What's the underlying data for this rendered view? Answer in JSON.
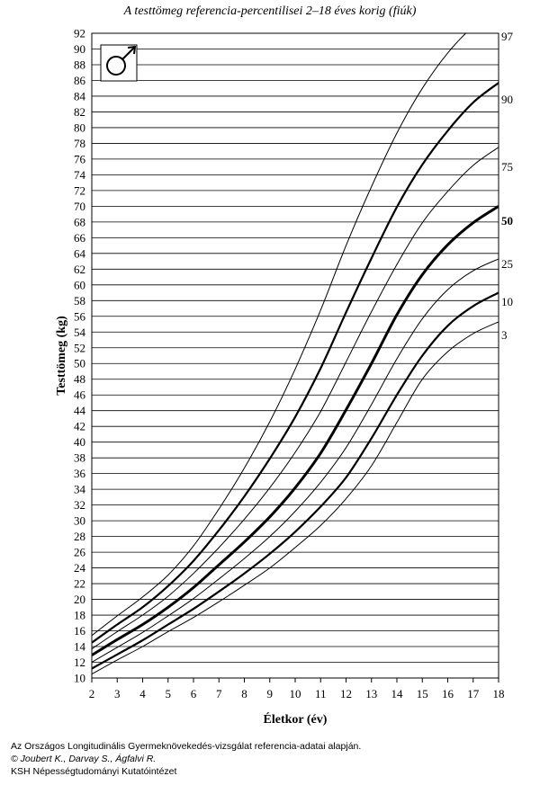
{
  "chart_data": {
    "type": "line",
    "title": "A testtömeg referencia-percentilisei 2–18 éves korig (fiúk)",
    "xlabel": "Életkor (év)",
    "ylabel": "Testtömeg (kg)",
    "xlim": [
      2,
      18
    ],
    "ylim": [
      10,
      92
    ],
    "x_ticks": [
      2,
      3,
      4,
      5,
      6,
      7,
      8,
      9,
      10,
      11,
      12,
      13,
      14,
      15,
      16,
      17,
      18
    ],
    "y_ticks": [
      10,
      12,
      14,
      16,
      18,
      20,
      22,
      24,
      26,
      28,
      30,
      32,
      34,
      36,
      38,
      40,
      42,
      44,
      46,
      48,
      50,
      52,
      54,
      56,
      58,
      60,
      62,
      64,
      66,
      68,
      70,
      72,
      74,
      76,
      78,
      80,
      82,
      84,
      86,
      88,
      90,
      92
    ],
    "grid": "horizontal",
    "symbol": "male-symbol",
    "x": [
      2,
      3,
      4,
      5,
      6,
      7,
      8,
      9,
      10,
      11,
      12,
      13,
      14,
      15,
      16,
      17,
      18
    ],
    "series": [
      {
        "name": "3",
        "emphasis": "thin",
        "values": [
          10.5,
          12.3,
          14.0,
          15.9,
          17.7,
          19.7,
          21.8,
          24.0,
          26.6,
          29.4,
          32.8,
          37.0,
          42.5,
          48.0,
          51.5,
          53.8,
          55.3
        ]
      },
      {
        "name": "10",
        "emphasis": "bold",
        "values": [
          11.2,
          13.0,
          14.8,
          16.8,
          18.8,
          21.0,
          23.3,
          25.8,
          28.6,
          31.8,
          35.5,
          40.5,
          46.0,
          51.0,
          54.8,
          57.3,
          59.0
        ]
      },
      {
        "name": "25",
        "emphasis": "thin",
        "values": [
          12.0,
          13.9,
          15.8,
          17.9,
          20.1,
          22.6,
          25.2,
          28.0,
          31.2,
          34.9,
          39.3,
          44.8,
          50.6,
          55.7,
          59.4,
          61.8,
          63.3
        ]
      },
      {
        "name": "50",
        "emphasis": "heavy",
        "values": [
          12.9,
          14.9,
          16.8,
          19.0,
          21.5,
          24.4,
          27.3,
          30.5,
          34.2,
          38.6,
          44.1,
          50.0,
          56.2,
          61.3,
          65.1,
          67.9,
          70.0
        ]
      },
      {
        "name": "75",
        "emphasis": "thin",
        "values": [
          13.7,
          15.9,
          18.0,
          20.4,
          23.3,
          26.6,
          30.2,
          34.2,
          38.7,
          43.9,
          50.2,
          56.6,
          62.6,
          67.9,
          71.9,
          75.2,
          77.5
        ]
      },
      {
        "name": "90",
        "emphasis": "bold",
        "values": [
          14.5,
          16.8,
          19.0,
          21.7,
          24.9,
          28.8,
          33.1,
          37.9,
          43.2,
          49.4,
          56.5,
          63.4,
          69.9,
          75.3,
          79.6,
          83.2,
          85.7
        ]
      },
      {
        "name": "97",
        "emphasis": "thin",
        "values": [
          15.4,
          17.9,
          20.3,
          23.1,
          26.8,
          31.5,
          36.7,
          42.6,
          49.3,
          56.8,
          65.0,
          72.5,
          79.3,
          85.0,
          89.5,
          92.9,
          95.5
        ]
      }
    ]
  },
  "source": {
    "line1": "Az Országos Longitudinális Gyermeknövekedés-vizsgálat referencia-adatai alapján.",
    "line2": "© Joubert K., Darvay S., Ágfalvi R.",
    "line3": "KSH Népességtudományi Kutatóintézet"
  }
}
